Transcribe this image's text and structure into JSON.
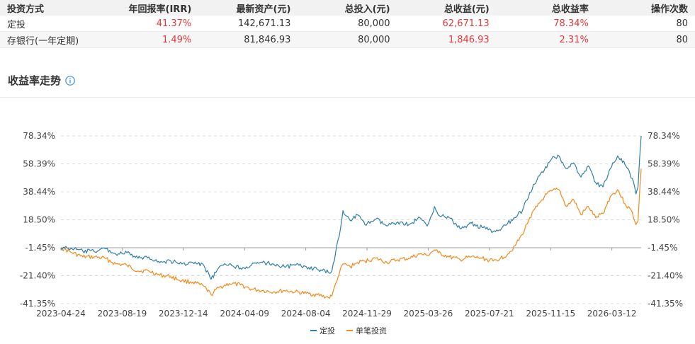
{
  "table": {
    "headers": [
      "投资方式",
      "年回报率(IRR)",
      "最新资产(元)",
      "总投入(元)",
      "总收益(元)",
      "总收益率",
      "操作次数"
    ],
    "rows": [
      [
        "定投",
        "41.37%",
        "142,671.13",
        "80,000",
        "62,671.13",
        "78.34%",
        "80"
      ],
      [
        "存银行(一年定期)",
        "1.49%",
        "81,846.93",
        "80,000",
        "1,846.93",
        "2.31%",
        "80"
      ]
    ]
  },
  "section": {
    "title": "收益率走势",
    "icon": "info-circle-icon"
  },
  "colors": {
    "accent_red": "#e4393c",
    "series_blue": "#2f7fa8",
    "series_orange": "#f28a1c",
    "info_blue": "#3a8ee6"
  },
  "chart_data": {
    "type": "line",
    "y_ticks": [
      "78.34%",
      "58.39%",
      "38.44%",
      "18.50%",
      "-1.45%",
      "-21.40%",
      "-41.35%"
    ],
    "y_tick_values": [
      78.34,
      58.39,
      38.44,
      18.5,
      -1.45,
      -21.4,
      -41.35
    ],
    "ylim": [
      -41.35,
      78.34
    ],
    "baseline": -1.45,
    "x_ticks": [
      "2023-04-24",
      "2023-08-19",
      "2023-12-14",
      "2024-04-09",
      "2024-08-04",
      "2024-11-29",
      "2025-03-26",
      "2025-07-21",
      "2025-11-15",
      "2026-03-12"
    ],
    "x_range": [
      "2023-04-24",
      "2026-05-07"
    ],
    "grid": "horizontal dashed",
    "legend_position": "bottom-center",
    "series": [
      {
        "name": "定投",
        "color": "#2f7fa8",
        "points": [
          [
            "2023-04-24",
            -1.45
          ],
          [
            "2023-05-15",
            -2
          ],
          [
            "2023-06-05",
            -4
          ],
          [
            "2023-06-26",
            -4
          ],
          [
            "2023-07-17",
            -2
          ],
          [
            "2023-08-07",
            -6
          ],
          [
            "2023-08-28",
            -5
          ],
          [
            "2023-09-18",
            -9
          ],
          [
            "2023-10-09",
            -8
          ],
          [
            "2023-10-30",
            -12
          ],
          [
            "2023-11-20",
            -11
          ],
          [
            "2023-12-11",
            -13
          ],
          [
            "2024-01-01",
            -12
          ],
          [
            "2024-01-22",
            -14
          ],
          [
            "2024-02-05",
            -24
          ],
          [
            "2024-02-19",
            -16
          ],
          [
            "2024-03-11",
            -13
          ],
          [
            "2024-04-01",
            -16
          ],
          [
            "2024-04-22",
            -14
          ],
          [
            "2024-05-13",
            -12
          ],
          [
            "2024-06-03",
            -13
          ],
          [
            "2024-06-24",
            -15
          ],
          [
            "2024-07-15",
            -14
          ],
          [
            "2024-08-05",
            -15
          ],
          [
            "2024-08-26",
            -17
          ],
          [
            "2024-09-16",
            -19
          ],
          [
            "2024-09-23",
            -18
          ],
          [
            "2024-09-30",
            -5
          ],
          [
            "2024-10-07",
            7
          ],
          [
            "2024-10-14",
            25
          ],
          [
            "2024-10-28",
            18
          ],
          [
            "2024-11-11",
            22
          ],
          [
            "2024-11-25",
            15
          ],
          [
            "2024-12-16",
            19
          ],
          [
            "2025-01-06",
            14
          ],
          [
            "2025-01-27",
            17
          ],
          [
            "2025-02-17",
            15
          ],
          [
            "2025-03-10",
            20
          ],
          [
            "2025-03-24",
            14
          ],
          [
            "2025-04-07",
            28
          ],
          [
            "2025-04-14",
            22
          ],
          [
            "2025-05-05",
            20
          ],
          [
            "2025-05-26",
            12
          ],
          [
            "2025-06-16",
            16
          ],
          [
            "2025-07-07",
            13
          ],
          [
            "2025-07-28",
            10
          ],
          [
            "2025-08-11",
            11
          ],
          [
            "2025-08-25",
            16
          ],
          [
            "2025-09-08",
            20
          ],
          [
            "2025-09-22",
            25
          ],
          [
            "2025-10-06",
            38
          ],
          [
            "2025-10-20",
            47
          ],
          [
            "2025-11-03",
            54
          ],
          [
            "2025-11-17",
            62
          ],
          [
            "2025-12-01",
            64
          ],
          [
            "2025-12-15",
            55
          ],
          [
            "2025-12-29",
            59
          ],
          [
            "2026-01-12",
            49
          ],
          [
            "2026-01-26",
            57
          ],
          [
            "2026-02-09",
            45
          ],
          [
            "2026-02-23",
            42
          ],
          [
            "2026-03-09",
            55
          ],
          [
            "2026-03-23",
            64
          ],
          [
            "2026-04-06",
            58
          ],
          [
            "2026-04-20",
            48
          ],
          [
            "2026-04-27",
            37
          ],
          [
            "2026-05-01",
            42
          ],
          [
            "2026-05-04",
            62
          ],
          [
            "2026-05-07",
            78.34
          ]
        ]
      },
      {
        "name": "单笔投资",
        "color": "#f28a1c",
        "points": [
          [
            "2023-04-24",
            -1.45
          ],
          [
            "2023-05-15",
            -5
          ],
          [
            "2023-06-05",
            -8
          ],
          [
            "2023-06-26",
            -8
          ],
          [
            "2023-07-17",
            -9
          ],
          [
            "2023-08-07",
            -13
          ],
          [
            "2023-08-28",
            -14
          ],
          [
            "2023-09-18",
            -18
          ],
          [
            "2023-10-09",
            -18
          ],
          [
            "2023-10-30",
            -21
          ],
          [
            "2023-11-20",
            -22
          ],
          [
            "2023-12-11",
            -25
          ],
          [
            "2024-01-01",
            -26
          ],
          [
            "2024-01-22",
            -29
          ],
          [
            "2024-02-05",
            -35
          ],
          [
            "2024-02-19",
            -30
          ],
          [
            "2024-03-11",
            -27
          ],
          [
            "2024-04-01",
            -28
          ],
          [
            "2024-04-22",
            -31
          ],
          [
            "2024-05-13",
            -32
          ],
          [
            "2024-06-03",
            -33
          ],
          [
            "2024-06-24",
            -32
          ],
          [
            "2024-07-15",
            -33
          ],
          [
            "2024-08-05",
            -34
          ],
          [
            "2024-08-26",
            -35
          ],
          [
            "2024-09-16",
            -37
          ],
          [
            "2024-09-23",
            -36
          ],
          [
            "2024-09-30",
            -27
          ],
          [
            "2024-10-07",
            -20
          ],
          [
            "2024-10-14",
            -13
          ],
          [
            "2024-10-28",
            -15
          ],
          [
            "2024-11-11",
            -12
          ],
          [
            "2024-11-25",
            -11
          ],
          [
            "2024-12-16",
            -9
          ],
          [
            "2025-01-06",
            -12
          ],
          [
            "2025-01-27",
            -10
          ],
          [
            "2025-02-17",
            -9
          ],
          [
            "2025-03-10",
            -6
          ],
          [
            "2025-03-24",
            -7
          ],
          [
            "2025-04-07",
            -3
          ],
          [
            "2025-04-14",
            -5
          ],
          [
            "2025-05-05",
            -8
          ],
          [
            "2025-05-26",
            -10
          ],
          [
            "2025-06-16",
            -8
          ],
          [
            "2025-07-07",
            -9
          ],
          [
            "2025-07-28",
            -11
          ],
          [
            "2025-08-11",
            -9
          ],
          [
            "2025-08-25",
            -6
          ],
          [
            "2025-09-08",
            0
          ],
          [
            "2025-09-22",
            8
          ],
          [
            "2025-10-06",
            20
          ],
          [
            "2025-10-20",
            28
          ],
          [
            "2025-11-03",
            35
          ],
          [
            "2025-11-17",
            39
          ],
          [
            "2025-12-01",
            40
          ],
          [
            "2025-12-15",
            28
          ],
          [
            "2025-12-29",
            33
          ],
          [
            "2026-01-12",
            22
          ],
          [
            "2026-01-26",
            28
          ],
          [
            "2026-02-09",
            20
          ],
          [
            "2026-02-23",
            23
          ],
          [
            "2026-03-09",
            35
          ],
          [
            "2026-03-23",
            40
          ],
          [
            "2026-04-06",
            30
          ],
          [
            "2026-04-20",
            24
          ],
          [
            "2026-04-27",
            15
          ],
          [
            "2026-05-01",
            18
          ],
          [
            "2026-05-04",
            38
          ],
          [
            "2026-05-07",
            55
          ]
        ]
      }
    ]
  }
}
